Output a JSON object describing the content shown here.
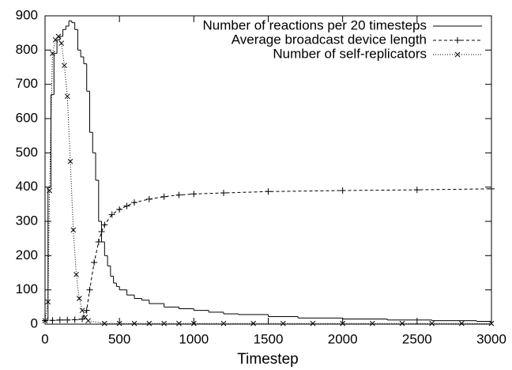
{
  "chart_data": {
    "type": "line",
    "xlabel": "Timestep",
    "xlim": [
      0,
      3000
    ],
    "ylim": [
      0,
      900
    ],
    "xticks": [
      0,
      500,
      1000,
      1500,
      2000,
      2500,
      3000
    ],
    "yticks": [
      0,
      100,
      200,
      300,
      400,
      500,
      600,
      700,
      800,
      900
    ],
    "legend": "top-right",
    "series": [
      {
        "name": "Number of reactions per 20 timesteps",
        "color": "#000000",
        "line_style": "steps",
        "x": [
          0,
          20,
          40,
          60,
          80,
          100,
          120,
          140,
          160,
          180,
          200,
          220,
          240,
          260,
          280,
          300,
          320,
          340,
          360,
          380,
          400,
          420,
          440,
          460,
          480,
          500,
          550,
          600,
          650,
          700,
          800,
          900,
          1000,
          1100,
          1200,
          1300,
          1500,
          1700,
          2000,
          2300,
          2600,
          2900
        ],
        "values": [
          10,
          400,
          670,
          790,
          830,
          840,
          860,
          870,
          885,
          880,
          860,
          800,
          780,
          760,
          680,
          560,
          500,
          420,
          300,
          240,
          200,
          170,
          140,
          120,
          110,
          100,
          85,
          75,
          70,
          60,
          50,
          45,
          40,
          35,
          30,
          28,
          22,
          18,
          15,
          12,
          10,
          8
        ]
      },
      {
        "name": "Average broadcast device length",
        "color": "#000000",
        "line_style": "dashed",
        "marker": "plus",
        "x": [
          0,
          50,
          100,
          150,
          200,
          250,
          280,
          300,
          330,
          360,
          380,
          400,
          450,
          500,
          550,
          600,
          700,
          800,
          900,
          1000,
          1200,
          1500,
          2000,
          2500,
          3000
        ],
        "values": [
          10,
          11,
          12,
          12,
          13,
          15,
          40,
          100,
          180,
          240,
          270,
          290,
          320,
          335,
          345,
          355,
          365,
          372,
          377,
          380,
          383,
          387,
          390,
          392,
          395
        ]
      },
      {
        "name": "Number of self-replicators",
        "color": "#000000",
        "line_style": "dotted",
        "marker": "cross",
        "x": [
          0,
          20,
          30,
          50,
          70,
          90,
          110,
          130,
          150,
          170,
          190,
          210,
          230,
          250,
          270,
          290,
          400,
          500,
          600,
          700,
          800,
          900,
          1000,
          1200,
          1400,
          1600,
          1800,
          2000,
          2200,
          2400,
          2600,
          2800,
          3000
        ],
        "values": [
          10,
          65,
          390,
          790,
          830,
          840,
          820,
          755,
          665,
          475,
          275,
          145,
          75,
          40,
          20,
          10,
          2,
          2,
          2,
          2,
          2,
          2,
          2,
          2,
          2,
          2,
          2,
          2,
          2,
          2,
          2,
          2,
          2
        ]
      }
    ]
  }
}
